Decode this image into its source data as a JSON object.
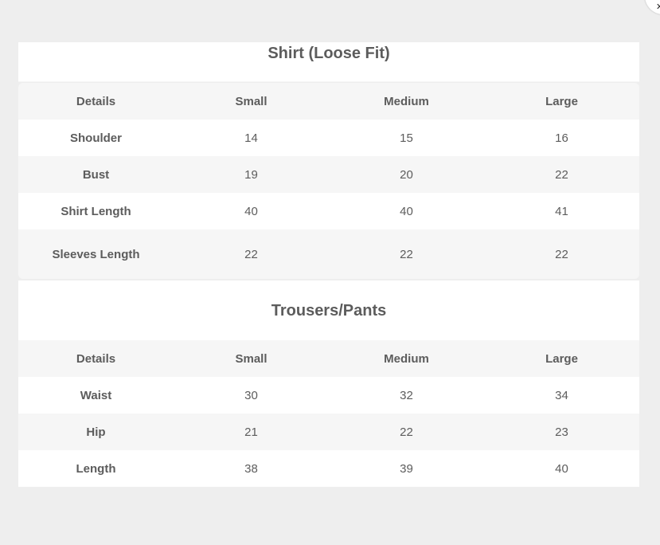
{
  "shirt": {
    "title": "Shirt (Loose Fit)",
    "headers": [
      "Details",
      "Small",
      "Medium",
      "Large"
    ],
    "rows": [
      [
        "Shoulder",
        "14",
        "15",
        "16"
      ],
      [
        "Bust",
        "19",
        "20",
        "22"
      ],
      [
        "Shirt Length",
        "40",
        "40",
        "41"
      ],
      [
        "Sleeves Length",
        "22",
        "22",
        "22"
      ]
    ]
  },
  "pants": {
    "title": "Trousers/Pants",
    "headers": [
      "Details",
      "Small",
      "Medium",
      "Large"
    ],
    "rows": [
      [
        "Waist",
        "30",
        "32",
        "34"
      ],
      [
        "Hip",
        "21",
        "22",
        "23"
      ],
      [
        "Length",
        "38",
        "39",
        "40"
      ]
    ]
  },
  "corner_button": {
    "icon": "close-icon"
  }
}
